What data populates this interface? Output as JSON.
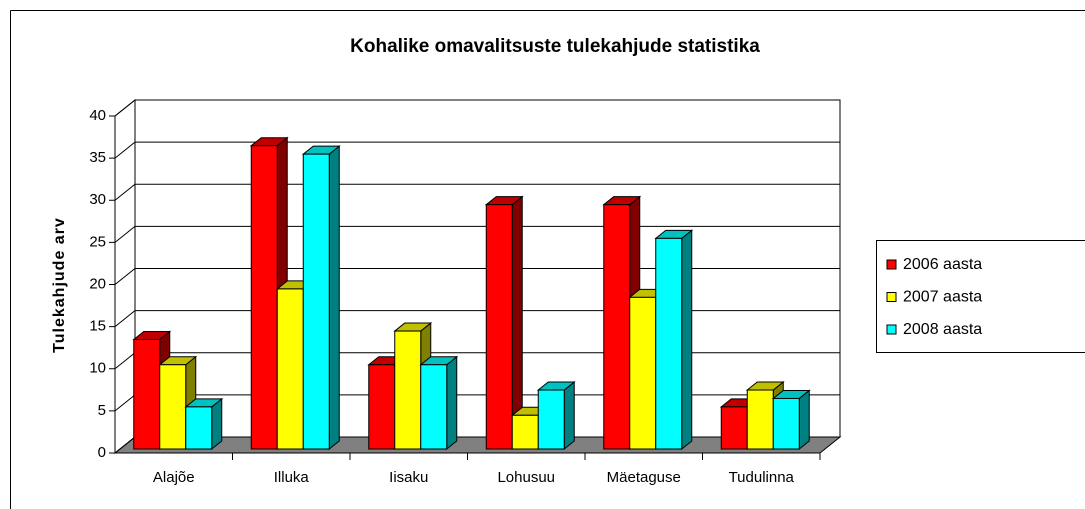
{
  "chart_data": {
    "type": "bar3d",
    "title": "Kohalike omavalitsuste tulekahjude statistika",
    "y_label": "Tulekahjude arv",
    "categories": [
      "Alajõe",
      "Illuka",
      "Iisaku",
      "Lohusuu",
      "Mäetaguse",
      "Tudulinna"
    ],
    "series": [
      {
        "name": "2006 aasta",
        "color": "#ff0000",
        "side": "#800000",
        "top": "#c00000",
        "values": [
          13,
          36,
          10,
          29,
          29,
          5
        ]
      },
      {
        "name": "2007 aasta",
        "color": "#ffff00",
        "side": "#808000",
        "top": "#c0c000",
        "values": [
          10,
          19,
          14,
          4,
          18,
          7
        ]
      },
      {
        "name": "2008 aasta",
        "color": "#00ffff",
        "side": "#008080",
        "top": "#00c0c0",
        "values": [
          5,
          35,
          10,
          7,
          25,
          6
        ]
      }
    ],
    "ylim": [
      0,
      40
    ],
    "yticks": [
      0,
      5,
      10,
      15,
      20,
      25,
      30,
      35,
      40
    ],
    "grid": true,
    "legend": "right"
  }
}
